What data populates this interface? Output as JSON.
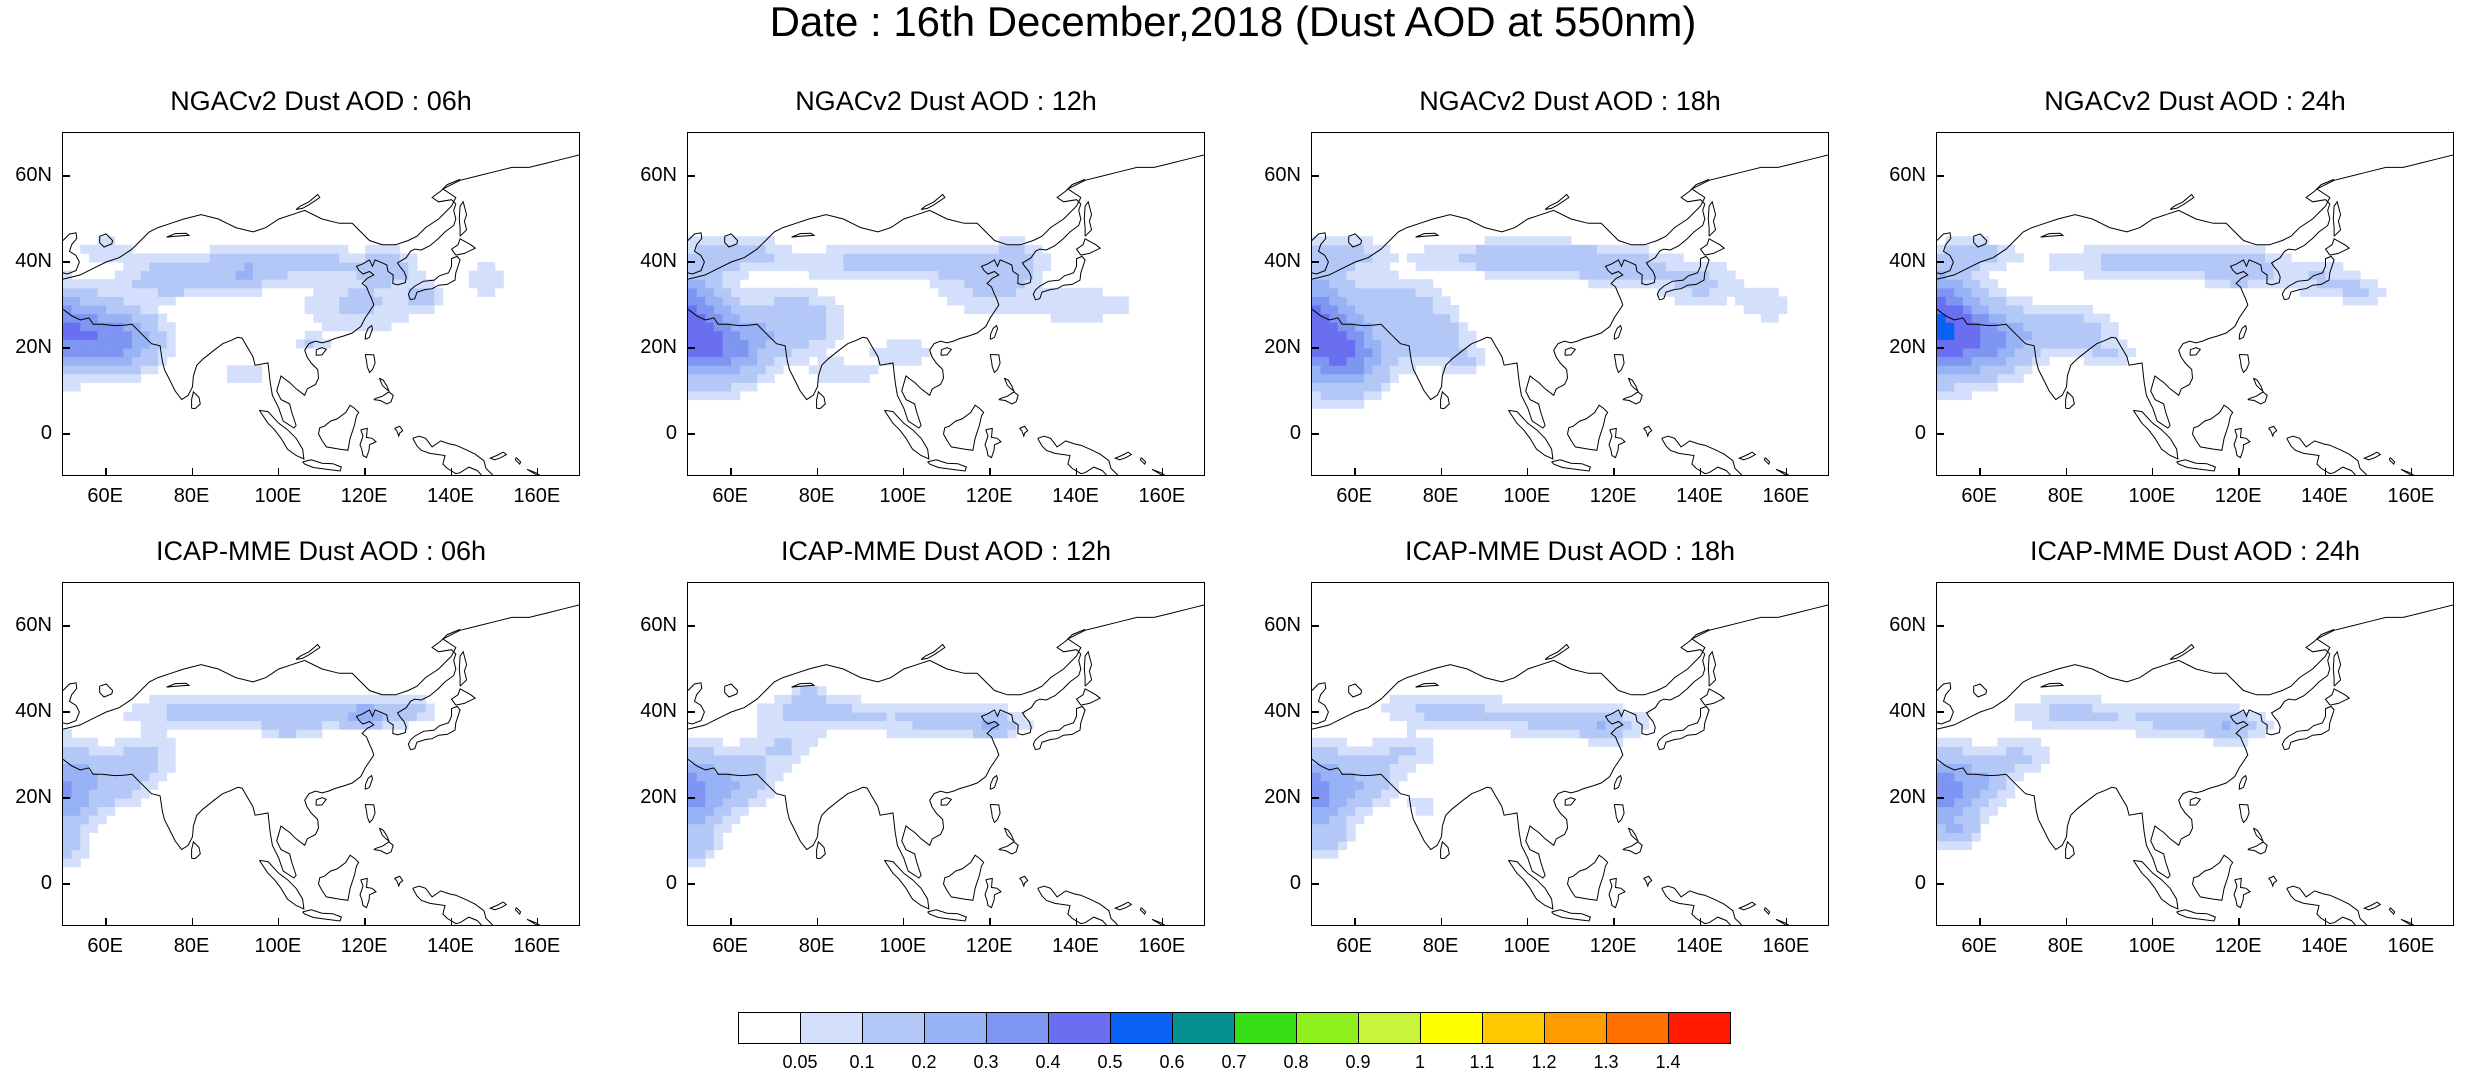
{
  "title": "Date : 16th December,2018 (Dust AOD at 550nm)",
  "axes": {
    "lon_range": [
      50,
      170
    ],
    "lat_range": [
      -10,
      70
    ],
    "x_ticks": [
      "60E",
      "80E",
      "100E",
      "120E",
      "140E",
      "160E"
    ],
    "x_tick_values": [
      60,
      80,
      100,
      120,
      140,
      160
    ],
    "y_ticks": [
      "60N",
      "40N",
      "20N",
      "0"
    ],
    "y_tick_values": [
      60,
      40,
      20,
      0
    ]
  },
  "panels": [
    {
      "title": "NGACv2 Dust AOD : 06h",
      "model": "NGACv2",
      "hour": "06h"
    },
    {
      "title": "NGACv2 Dust AOD : 12h",
      "model": "NGACv2",
      "hour": "12h"
    },
    {
      "title": "NGACv2 Dust AOD : 18h",
      "model": "NGACv2",
      "hour": "18h"
    },
    {
      "title": "NGACv2 Dust AOD : 24h",
      "model": "NGACv2",
      "hour": "24h"
    },
    {
      "title": "ICAP-MME Dust AOD : 06h",
      "model": "ICAP-MME",
      "hour": "06h"
    },
    {
      "title": "ICAP-MME Dust AOD : 12h",
      "model": "ICAP-MME",
      "hour": "12h"
    },
    {
      "title": "ICAP-MME Dust AOD : 18h",
      "model": "ICAP-MME",
      "hour": "18h"
    },
    {
      "title": "ICAP-MME Dust AOD : 24h",
      "model": "ICAP-MME",
      "hour": "24h"
    }
  ],
  "colorbar": {
    "labels": [
      "0.05",
      "0.1",
      "0.2",
      "0.3",
      "0.4",
      "0.5",
      "0.6",
      "0.7",
      "0.8",
      "0.9",
      "1",
      "1.1",
      "1.2",
      "1.3",
      "1.4"
    ],
    "colors": [
      "#ffffff",
      "#d4e0fb",
      "#b4c8f8",
      "#97b2f5",
      "#7e95f2",
      "#6a6ef0",
      "#0a62f4",
      "#079090",
      "#37e016",
      "#8ef01c",
      "#c8f53c",
      "#ffff00",
      "#ffc800",
      "#ff9c00",
      "#ff7000",
      "#ff1a00"
    ]
  }
}
